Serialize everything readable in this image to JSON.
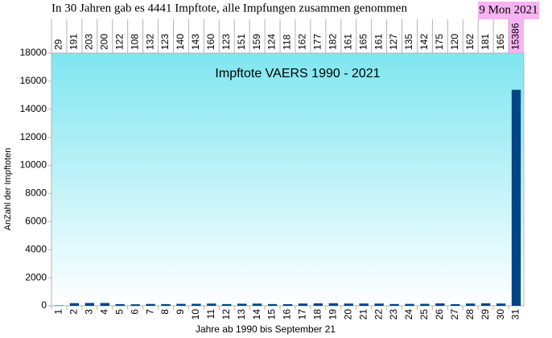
{
  "chart_data": {
    "type": "bar",
    "headline": "In 30 Jahren gab es  4441 Impftote,  alle Impfungen zusammen genommen",
    "badge": "9 Mon 2021",
    "title": "Impftote VAERS 1990 - 2021",
    "ylabel": "AnZahl der Impftoten",
    "xlabel": "Jahre ab 1990 bis September 21",
    "categories": [
      "1",
      "2",
      "3",
      "4",
      "5",
      "6",
      "7",
      "8",
      "9",
      "10",
      "11",
      "12",
      "13",
      "14",
      "15",
      "16",
      "17",
      "18",
      "19",
      "20",
      "21",
      "22",
      "23",
      "24",
      "25",
      "26",
      "27",
      "28",
      "29",
      "30",
      "31"
    ],
    "values": [
      29,
      191,
      203,
      200,
      122,
      108,
      132,
      123,
      140,
      143,
      160,
      123,
      151,
      159,
      124,
      118,
      162,
      177,
      182,
      161,
      165,
      161,
      127,
      135,
      142,
      175,
      120,
      162,
      181,
      165,
      15386
    ],
    "color": "#004586",
    "ylim": [
      0,
      18000
    ],
    "yticks": [
      0,
      2000,
      4000,
      6000,
      8000,
      10000,
      12000,
      14000,
      16000,
      18000
    ],
    "grid": false
  }
}
